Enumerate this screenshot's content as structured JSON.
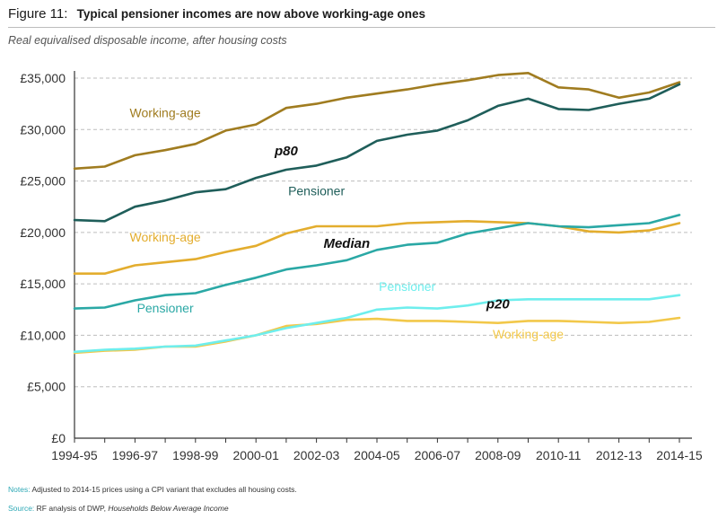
{
  "figure": {
    "label": "Figure 11:",
    "heading": "Typical pensioner incomes are now above working-age ones",
    "subtitle": "Real equivalised disposable income, after housing costs"
  },
  "notes": {
    "tag": "Notes:",
    "text": "Adjusted to 2014-15 prices using a CPI variant that excludes all housing costs."
  },
  "source": {
    "tag": "Source:",
    "text": "RF analysis of DWP,",
    "title": "Households Below Average Income"
  },
  "colors": {
    "p80_working_age": "#a07c20",
    "p80_pensioner": "#1f5e5a",
    "median_working_age": "#e3ad2e",
    "median_pensioner": "#2aa8a5",
    "p20_working_age": "#f2c84a",
    "p20_pensioner": "#6eeeed",
    "grid": "#bdbdbd",
    "axis": "#333333"
  },
  "chart_data": {
    "type": "line",
    "title": "Typical pensioner incomes are now above working-age ones",
    "xlabel": "",
    "ylabel": "Real equivalised disposable income, after housing costs",
    "ylim": [
      0,
      35000
    ],
    "y_ticks": [
      0,
      5000,
      10000,
      15000,
      20000,
      25000,
      30000,
      35000
    ],
    "y_tick_labels": [
      "£0",
      "£5,000",
      "£10,000",
      "£15,000",
      "£20,000",
      "£25,000",
      "£30,000",
      "£35,000"
    ],
    "x": [
      "1994-95",
      "1995-96",
      "1996-97",
      "1997-98",
      "1998-99",
      "1999-00",
      "2000-01",
      "2001-02",
      "2002-03",
      "2003-04",
      "2004-05",
      "2005-06",
      "2006-07",
      "2007-08",
      "2008-09",
      "2009-10",
      "2010-11",
      "2011-12",
      "2012-13",
      "2013-14",
      "2014-15"
    ],
    "x_tick_labels": [
      "1994-95",
      "1996-97",
      "1998-99",
      "2000-01",
      "2002-03",
      "2004-05",
      "2006-07",
      "2008-09",
      "2010-11",
      "2012-13",
      "2014-15"
    ],
    "grid": true,
    "series": [
      {
        "name": "p80 Working-age",
        "key": "p80_working_age",
        "values": [
          26200,
          26400,
          27500,
          28000,
          28600,
          29900,
          30500,
          32100,
          32500,
          33100,
          33500,
          33900,
          34400,
          34800,
          35300,
          35500,
          34100,
          33900,
          33100,
          33600,
          34600
        ]
      },
      {
        "name": "p80 Pensioner",
        "key": "p80_pensioner",
        "values": [
          21200,
          21100,
          22500,
          23100,
          23900,
          24200,
          25300,
          26100,
          26500,
          27300,
          28900,
          29500,
          29900,
          30900,
          32300,
          33000,
          32000,
          31900,
          32500,
          33000,
          34400
        ]
      },
      {
        "name": "Median Working-age",
        "key": "median_working_age",
        "values": [
          16000,
          16000,
          16800,
          17100,
          17400,
          18100,
          18700,
          19900,
          20600,
          20600,
          20600,
          20900,
          21000,
          21100,
          21000,
          20900,
          20600,
          20100,
          20000,
          20200,
          20900
        ]
      },
      {
        "name": "Median Pensioner",
        "key": "median_pensioner",
        "values": [
          12600,
          12700,
          13400,
          13900,
          14100,
          14900,
          15600,
          16400,
          16800,
          17300,
          18300,
          18800,
          19000,
          19900,
          20400,
          20900,
          20600,
          20500,
          20700,
          20900,
          21700
        ]
      },
      {
        "name": "p20 Working-age",
        "key": "p20_working_age",
        "values": [
          8300,
          8500,
          8600,
          8900,
          8900,
          9400,
          10000,
          10900,
          11100,
          11500,
          11600,
          11400,
          11400,
          11300,
          11200,
          11400,
          11400,
          11300,
          11200,
          11300,
          11700
        ]
      },
      {
        "name": "p20 Pensioner",
        "key": "p20_pensioner",
        "values": [
          8400,
          8600,
          8700,
          8900,
          9000,
          9500,
          10000,
          10700,
          11200,
          11700,
          12500,
          12700,
          12600,
          12900,
          13400,
          13500,
          13500,
          13500,
          13500,
          13500,
          13900
        ]
      }
    ],
    "annotations": [
      {
        "key": "p80_working_age",
        "text": "Working-age",
        "at": {
          "x": "1997-98",
          "y": 31200
        }
      },
      {
        "key": "p80",
        "text": "p80",
        "at": {
          "x": "2001-02",
          "y": 27500
        },
        "style": "group"
      },
      {
        "key": "p80_pensioner",
        "text": "Pensioner",
        "at": {
          "x": "2002-03",
          "y": 23600
        }
      },
      {
        "key": "median_working_age",
        "text": "Working-age",
        "at": {
          "x": "1997-98",
          "y": 19100
        }
      },
      {
        "key": "median",
        "text": "Median",
        "at": {
          "x": "2003-04",
          "y": 18500
        },
        "style": "group"
      },
      {
        "key": "p20_pensioner",
        "text": "Pensioner",
        "at": {
          "x": "2005-06",
          "y": 14300
        }
      },
      {
        "key": "median_pensioner",
        "text": "Pensioner",
        "at": {
          "x": "1997-98",
          "y": 12200
        }
      },
      {
        "key": "p20",
        "text": "p20",
        "at": {
          "x": "2008-09",
          "y": 12600
        },
        "style": "group"
      },
      {
        "key": "p20_working_age",
        "text": "Working-age",
        "at": {
          "x": "2009-10",
          "y": 9700
        }
      }
    ]
  }
}
